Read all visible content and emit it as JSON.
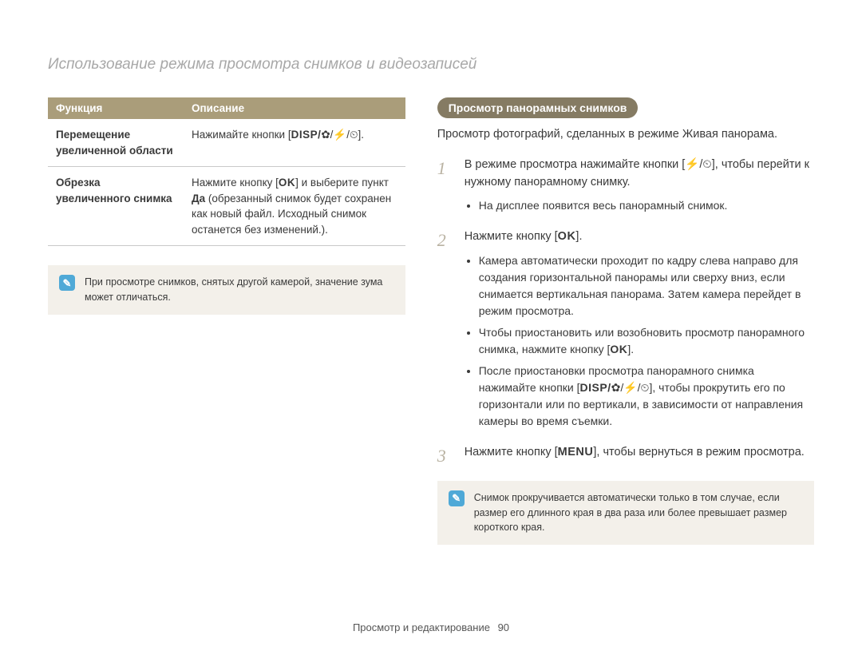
{
  "page_title": "Использование режима просмотра снимков и видеозаписей",
  "table": {
    "head": {
      "function": "Функция",
      "description": "Описание"
    },
    "rows": [
      {
        "fn": "Перемещение увеличенной области",
        "desc_prefix": "Нажимайте кнопки [",
        "desc_keys": "DISP/",
        "desc_icons": "✿/⚡/⏲",
        "desc_suffix": "]."
      },
      {
        "fn": "Обрезка увеличенного снимка",
        "desc_l1": "Нажмите кнопку [",
        "ok": "OK",
        "desc_l1b": "] и выберите пункт ",
        "bold": "Да",
        "desc_l2": " (обрезанный снимок будет сохранен как новый файл. Исходный снимок останется без изменений.)."
      }
    ]
  },
  "note_left": "При просмотре снимков, снятых другой камерой, значение зума может отличаться.",
  "heading_pill": "Просмотр панорамных снимков",
  "intro": "Просмотр фотографий, сделанных в режиме Живая панорама.",
  "steps": {
    "s1": {
      "t1": "В режиме просмотра нажимайте кнопки [",
      "icons": "⚡/⏲",
      "t2": "], чтобы перейти к нужному панорамному снимку.",
      "sub1": "На дисплее появится весь панорамный снимок."
    },
    "s2": {
      "t1": "Нажмите кнопку [",
      "ok": "OK",
      "t2": "].",
      "sub1": "Камера автоматически проходит по кадру слева направо для создания горизонтальной панорамы или сверху вниз, если снимается вертикальная панорама. Затем камера перейдет в режим просмотра.",
      "sub2a": "Чтобы приостановить или возобновить просмотр панорамного снимка, нажмите кнопку [",
      "ok2": "OK",
      "sub2b": "].",
      "sub3a": "После приостановки просмотра панорамного снимка нажимайте кнопки [",
      "disp": "DISP/",
      "icons": "✿/⚡/⏲",
      "sub3b": "], чтобы прокрутить его по горизонтали или по вертикали, в зависимости от направления камеры во время съемки."
    },
    "s3": {
      "t1": "Нажмите кнопку [",
      "menu": "MENU",
      "t2": "], чтобы вернуться в режим просмотра."
    }
  },
  "note_right": "Снимок прокручивается автоматически только в том случае, если размер его длинного края в два раза или более превышает размер короткого края.",
  "footer": {
    "section": "Просмотр и редактирование",
    "page": "90"
  },
  "colors": {
    "table_header_bg": "#aa9d7a",
    "pill_bg": "#857b63",
    "note_bg": "#f3f0ea",
    "note_icon_bg": "#4fa9d7",
    "title_color": "#a8a8a8",
    "step_number_color": "#b9b2a2"
  }
}
